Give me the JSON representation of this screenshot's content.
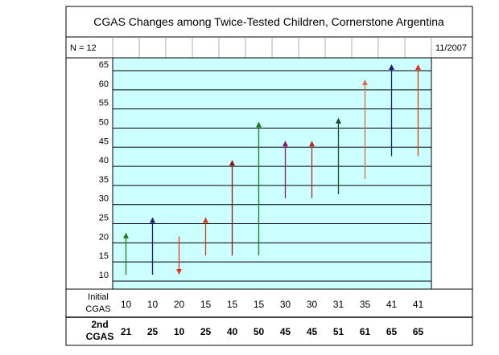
{
  "chart_data": {
    "type": "arrow-change",
    "title": "CGAS Changes among Twice-Tested Children, Cornerstone Argentina",
    "n_label": "N = 12",
    "date_label": "11/2007",
    "ylim": [
      10,
      65
    ],
    "yticks": [
      65,
      60,
      55,
      50,
      45,
      40,
      35,
      30,
      25,
      20,
      15,
      10
    ],
    "grid": true,
    "row_labels": {
      "initial": [
        "Initial",
        "CGAS"
      ],
      "second": [
        "2nd",
        "CGAS"
      ]
    },
    "initial": [
      10,
      10,
      20,
      15,
      15,
      15,
      30,
      30,
      31,
      35,
      41,
      41
    ],
    "second": [
      21,
      25,
      10,
      25,
      40,
      50,
      45,
      45,
      51,
      61,
      65,
      65
    ],
    "colors": [
      "#1a7f1a",
      "#1c1c7a",
      "#e03a12",
      "#e03a12",
      "#8b1a1a",
      "#1a7f1a",
      "#8b1a6e",
      "#b52a2a",
      "#1a4a2a",
      "#e06a40",
      "#1c1c7a",
      "#e03a12"
    ],
    "plot_bg": "#ccffff"
  }
}
